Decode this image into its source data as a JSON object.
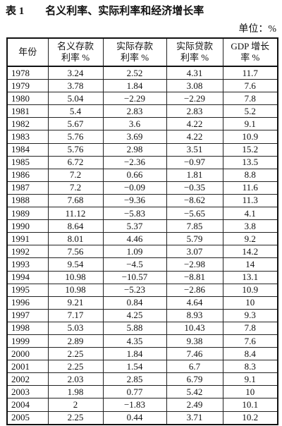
{
  "header": {
    "title": "表 1　　名义利率、实际利率和经济增长率",
    "unit": "单位：%"
  },
  "table": {
    "columns": [
      [
        "年份"
      ],
      [
        "名义存款",
        "利率 %"
      ],
      [
        "实际存款",
        "利率 %"
      ],
      [
        "实际贷款",
        "利率 %"
      ],
      [
        "GDP 增长",
        "率 %"
      ]
    ],
    "rows": [
      [
        "1978",
        "3.24",
        "2.52",
        "4.31",
        "11.7"
      ],
      [
        "1979",
        "3.78",
        "1.84",
        "3.08",
        "7.6"
      ],
      [
        "1980",
        "5.04",
        "−2.29",
        "−2.29",
        "7.8"
      ],
      [
        "1981",
        "5.4",
        "2.83",
        "2.83",
        "5.2"
      ],
      [
        "1982",
        "5.67",
        "3.6",
        "4.22",
        "9.1"
      ],
      [
        "1983",
        "5.76",
        "3.69",
        "4.22",
        "10.9"
      ],
      [
        "1984",
        "5.76",
        "2.98",
        "3.51",
        "15.2"
      ],
      [
        "1985",
        "6.72",
        "−2.36",
        "−0.97",
        "13.5"
      ],
      [
        "1986",
        "7.2",
        "0.66",
        "1.81",
        "8.8"
      ],
      [
        "1987",
        "7.2",
        "−0.09",
        "−0.35",
        "11.6"
      ],
      [
        "1988",
        "7.68",
        "−9.36",
        "−8.62",
        "11.3"
      ],
      [
        "1989",
        "11.12",
        "−5.83",
        "−5.65",
        "4.1"
      ],
      [
        "1990",
        "8.64",
        "5.37",
        "7.85",
        "3.8"
      ],
      [
        "1991",
        "8.01",
        "4.46",
        "5.79",
        "9.2"
      ],
      [
        "1992",
        "7.56",
        "1.09",
        "3.07",
        "14.2"
      ],
      [
        "1993",
        "9.54",
        "−4.5",
        "−2.98",
        "14"
      ],
      [
        "1994",
        "10.98",
        "−10.57",
        "−8.81",
        "13.1"
      ],
      [
        "1995",
        "10.98",
        "−5.23",
        "−2.86",
        "10.9"
      ],
      [
        "1996",
        "9.21",
        "0.84",
        "4.64",
        "10"
      ],
      [
        "1997",
        "7.17",
        "4.25",
        "8.93",
        "9.3"
      ],
      [
        "1998",
        "5.03",
        "5.88",
        "10.43",
        "7.8"
      ],
      [
        "1999",
        "2.89",
        "4.35",
        "9.38",
        "7.6"
      ],
      [
        "2000",
        "2.25",
        "1.84",
        "7.46",
        "8.4"
      ],
      [
        "2001",
        "2.25",
        "1.54",
        "6.7",
        "8.3"
      ],
      [
        "2002",
        "2.03",
        "2.85",
        "6.79",
        "9.1"
      ],
      [
        "2003",
        "1.98",
        "0.77",
        "5.42",
        "10"
      ],
      [
        "2004",
        "2",
        "−1.83",
        "2.49",
        "10.1"
      ],
      [
        "2005",
        "2.25",
        "0.44",
        "3.71",
        "10.2"
      ]
    ]
  }
}
